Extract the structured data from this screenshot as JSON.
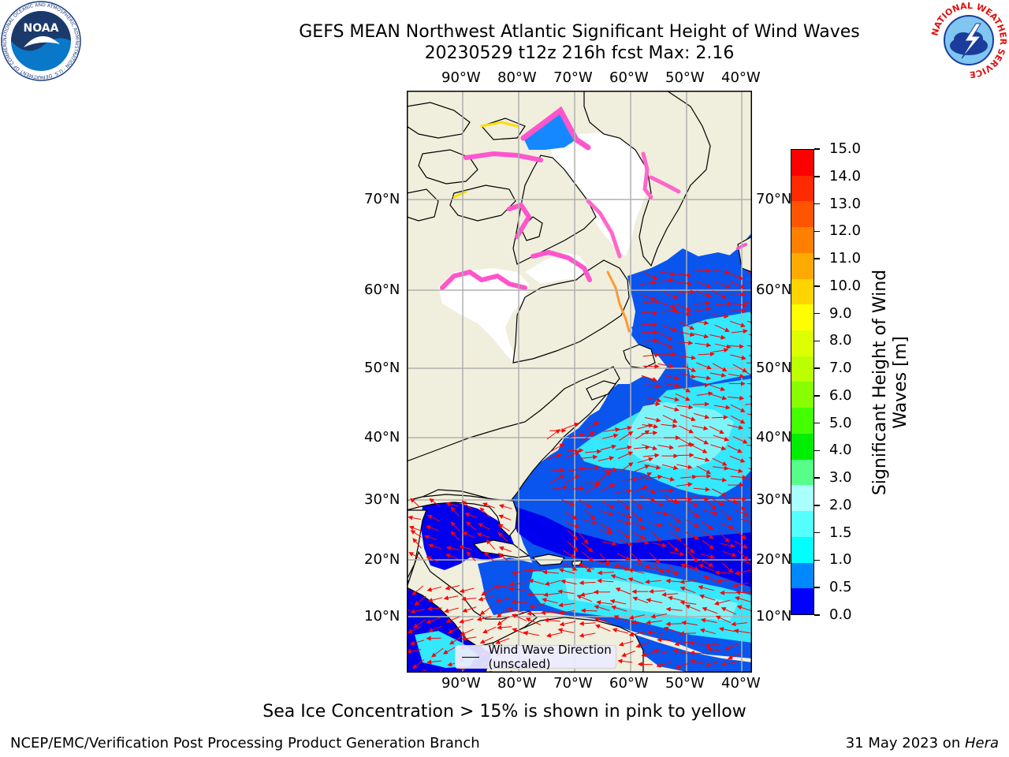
{
  "title_line1": "GEFS MEAN Northwest Atlantic Significant Height of Wind Waves",
  "title_line2": "20230529 t12z 216h fcst   Max: 2.16",
  "logos": {
    "noaa_text": "NOAA",
    "noaa_ring_text": "NATIONAL OCEANIC AND ATMOSPHERIC ADMINISTRATION · U.S. DEPARTMENT OF COMMERCE",
    "nws_ring_text": "NATIONAL WEATHER SERVICE"
  },
  "lon_labels": [
    "90°W",
    "80°W",
    "70°W",
    "60°W",
    "50°W",
    "40°W"
  ],
  "lat_labels": [
    "70°N",
    "60°N",
    "50°N",
    "40°N",
    "30°N",
    "20°N",
    "10°N"
  ],
  "colorbar": {
    "label": "Significant Height of Wind Waves [m]",
    "label_line1": "Significant Height of Wind",
    "label_line2": "Waves [m]",
    "ticks": [
      "15.0",
      "14.0",
      "13.0",
      "12.0",
      "11.0",
      "10.0",
      "9.0",
      "8.0",
      "7.0",
      "6.0",
      "5.0",
      "4.0",
      "3.0",
      "2.0",
      "1.5",
      "1.0",
      "0.5",
      "0.0"
    ],
    "colors_top_to_bottom": [
      "#ff0000",
      "#ff2a00",
      "#ff5500",
      "#ff8000",
      "#ffaa00",
      "#ffd400",
      "#ffff00",
      "#ddff00",
      "#bbff00",
      "#88ff00",
      "#44ff00",
      "#00ee00",
      "#55ff88",
      "#aaffff",
      "#55ffff",
      "#00ffff",
      "#0088ff",
      "#0000ff"
    ]
  },
  "legend": {
    "label": "Wind Wave Direction (unscaled)"
  },
  "colors": {
    "land": "#f0eedc",
    "grid": "#b0b0b0",
    "arrow": "#ff0000",
    "ice_pink": "#ff55cc"
  },
  "sea_ice_note": "Sea Ice Concentration > 15% is shown in pink to yellow",
  "footer_left": "NCEP/EMC/Verification Post Processing Product Generation Branch",
  "footer_right_prefix": "31 May 2023 on ",
  "footer_right_host": "Hera"
}
